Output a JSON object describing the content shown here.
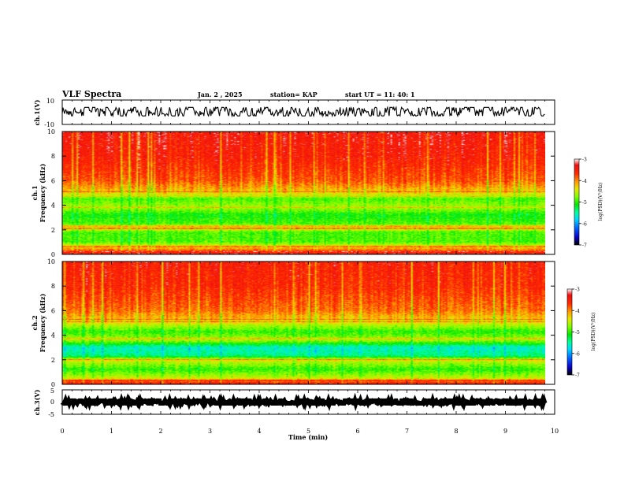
{
  "header": {
    "title": "VLF Spectra",
    "date": "Jan. 2 , 2025",
    "station": "station= KAP",
    "start": "start UT =  11: 40: 1"
  },
  "colors": {
    "colormap": [
      "#000000",
      "#0a00c8",
      "#0064ff",
      "#00d8ff",
      "#00ff9c",
      "#00e600",
      "#7dff00",
      "#e6e600",
      "#ffa000",
      "#ff2a00",
      "#ee1010",
      "#ffffff"
    ],
    "trace": "#000000",
    "axis": "#000000"
  },
  "chart_data": [
    {
      "id": "ch1-waveform",
      "type": "line",
      "ylabel": "ch.1(V)",
      "ylim": [
        -10,
        10
      ],
      "yticks": [
        "10",
        "-10"
      ],
      "xlim": [
        0,
        10
      ],
      "data_extent_min": 9.8,
      "mean": 0.5,
      "amplitude": 3.5
    },
    {
      "id": "ch1-spectrogram",
      "type": "heatmap",
      "ylabel": "Frequency (kHz)",
      "channel": "ch.1",
      "ylim": [
        0,
        10
      ],
      "yticks": [
        "0",
        "2",
        "4",
        "6",
        "8",
        "10"
      ],
      "xlim": [
        0,
        10
      ],
      "data_extent_min": 9.8,
      "colorbar": {
        "label": "log(PSD)(V²/Hz)",
        "range": [
          -7,
          -3
        ],
        "ticks": [
          "-3",
          "-4",
          "-5",
          "-6",
          "-7"
        ]
      },
      "band_profile": [
        {
          "f": 0.0,
          "v": -3.3
        },
        {
          "f": 0.5,
          "v": -4.2
        },
        {
          "f": 1.0,
          "v": -4.9
        },
        {
          "f": 1.8,
          "v": -4.9
        },
        {
          "f": 2.1,
          "v": -4.3
        },
        {
          "f": 2.5,
          "v": -4.9
        },
        {
          "f": 3.2,
          "v": -5.1
        },
        {
          "f": 3.8,
          "v": -4.6
        },
        {
          "f": 4.5,
          "v": -4.9
        },
        {
          "f": 5.0,
          "v": -4.3
        },
        {
          "f": 6.0,
          "v": -3.8
        },
        {
          "f": 8.0,
          "v": -3.5
        },
        {
          "f": 10.0,
          "v": -3.4
        }
      ],
      "lines_khz": [
        0.2,
        0.6,
        2.1,
        2.3,
        3.8,
        4.7,
        5.1
      ]
    },
    {
      "id": "ch2-spectrogram",
      "type": "heatmap",
      "ylabel": "Frequency (kHz)",
      "channel": "ch.2",
      "ylim": [
        0,
        10
      ],
      "yticks": [
        "0",
        "2",
        "4",
        "6",
        "8",
        "10"
      ],
      "xlim": [
        0,
        10
      ],
      "data_extent_min": 9.8,
      "colorbar": {
        "label": "log(PSD)(V²/Hz)",
        "range": [
          -7,
          -3
        ],
        "ticks": [
          "-3",
          "-4",
          "-5",
          "-6",
          "-7"
        ]
      },
      "band_profile": [
        {
          "f": 0.0,
          "v": -3.4
        },
        {
          "f": 0.5,
          "v": -4.5
        },
        {
          "f": 1.2,
          "v": -5.0
        },
        {
          "f": 2.0,
          "v": -4.4
        },
        {
          "f": 2.3,
          "v": -5.4
        },
        {
          "f": 3.0,
          "v": -5.6
        },
        {
          "f": 3.6,
          "v": -4.6
        },
        {
          "f": 4.3,
          "v": -5.0
        },
        {
          "f": 5.0,
          "v": -4.4
        },
        {
          "f": 6.0,
          "v": -3.9
        },
        {
          "f": 8.0,
          "v": -3.6
        },
        {
          "f": 10.0,
          "v": -3.5
        }
      ],
      "lines_khz": [
        0.3,
        2.0,
        3.7,
        5.1,
        5.3
      ]
    },
    {
      "id": "ch3-waveform",
      "type": "line",
      "ylabel": "ch.3(V)",
      "ylim": [
        -5,
        5
      ],
      "yticks": [
        "5",
        "0",
        "-5"
      ],
      "xlim": [
        0,
        10
      ],
      "data_extent_min": 9.8,
      "mean": 0.0,
      "amplitude": 0.5
    }
  ],
  "xaxis": {
    "label": "Time (min)",
    "ticks": [
      "0",
      "1",
      "2",
      "3",
      "4",
      "5",
      "6",
      "7",
      "8",
      "9",
      "10"
    ]
  }
}
